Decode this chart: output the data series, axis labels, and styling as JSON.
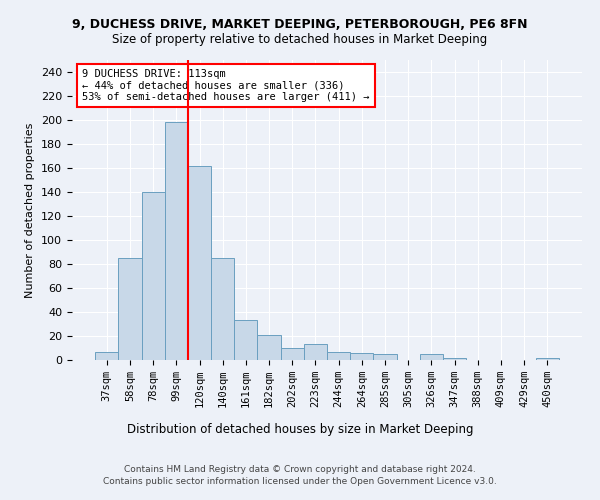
{
  "title1": "9, DUCHESS DRIVE, MARKET DEEPING, PETERBOROUGH, PE6 8FN",
  "title2": "Size of property relative to detached houses in Market Deeping",
  "xlabel": "Distribution of detached houses by size in Market Deeping",
  "ylabel": "Number of detached properties",
  "bar_color": "#c8d8e8",
  "bar_edge_color": "#6a9fc0",
  "categories": [
    "37sqm",
    "58sqm",
    "78sqm",
    "99sqm",
    "120sqm",
    "140sqm",
    "161sqm",
    "182sqm",
    "202sqm",
    "223sqm",
    "244sqm",
    "264sqm",
    "285sqm",
    "305sqm",
    "326sqm",
    "347sqm",
    "388sqm",
    "409sqm",
    "429sqm",
    "450sqm"
  ],
  "values": [
    7,
    85,
    140,
    198,
    162,
    85,
    33,
    21,
    10,
    13,
    7,
    6,
    5,
    0,
    5,
    2,
    0,
    0,
    0,
    2
  ],
  "annotation_text": "9 DUCHESS DRIVE: 113sqm\n← 44% of detached houses are smaller (336)\n53% of semi-detached houses are larger (411) →",
  "annotation_box_color": "white",
  "annotation_box_edge_color": "red",
  "vline_color": "red",
  "vline_x": 3.5,
  "ylim": [
    0,
    250
  ],
  "yticks": [
    0,
    20,
    40,
    60,
    80,
    100,
    120,
    140,
    160,
    180,
    200,
    220,
    240
  ],
  "footer1": "Contains HM Land Registry data © Crown copyright and database right 2024.",
  "footer2": "Contains public sector information licensed under the Open Government Licence v3.0.",
  "background_color": "#edf1f8",
  "grid_color": "white"
}
